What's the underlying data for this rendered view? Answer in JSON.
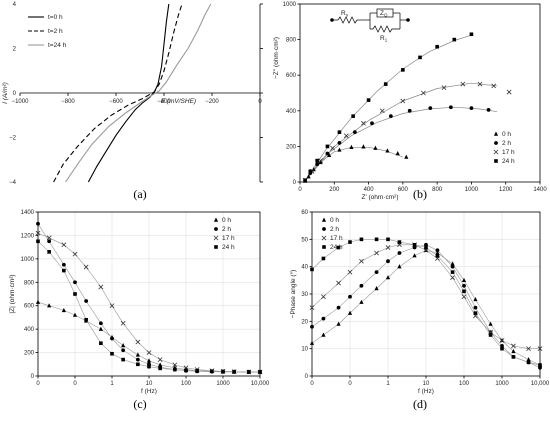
{
  "chart_data": [
    {
      "id": "a",
      "type": "line",
      "caption": "(a)",
      "xlabel": "E (mV/SHE)",
      "ylabel": "I (A/m²)",
      "xlim": [
        -1000,
        0
      ],
      "ylim": [
        -4,
        4
      ],
      "xticks": [
        -1000,
        -800,
        -600,
        -400,
        -200,
        0
      ],
      "yticks": [
        -4,
        -2,
        0,
        2,
        4
      ],
      "xtick_labels": [
        "−1000",
        "−800",
        "−600",
        "−400",
        "−200",
        "0"
      ],
      "ytick_labels": [
        "−4",
        "−2",
        "0",
        "2",
        "4"
      ],
      "legend_position": "top-left",
      "series": [
        {
          "name": "t=0 h",
          "style": "solid",
          "color": "#000000",
          "x": [
            -715,
            -680,
            -640,
            -600,
            -560,
            -520,
            -490,
            -460,
            -440,
            -425,
            -410,
            -400,
            -390,
            -380
          ],
          "y": [
            -4,
            -3.3,
            -2.6,
            -1.9,
            -1.3,
            -0.75,
            -0.45,
            -0.2,
            0.05,
            0.4,
            1.2,
            2.2,
            3.2,
            4
          ]
        },
        {
          "name": "t=2 h",
          "style": "dashed",
          "color": "#000000",
          "x": [
            -860,
            -820,
            -760,
            -690,
            -620,
            -550,
            -490,
            -440,
            -420,
            -400,
            -380,
            -360,
            -340,
            -325
          ],
          "y": [
            -4,
            -3.2,
            -2.4,
            -1.6,
            -1.0,
            -0.55,
            -0.25,
            0.05,
            0.4,
            1.0,
            1.8,
            2.7,
            3.5,
            4
          ]
        },
        {
          "name": "t=24 h",
          "style": "solid",
          "color": "#9a9a9a",
          "x": [
            -810,
            -760,
            -700,
            -630,
            -560,
            -500,
            -450,
            -420,
            -390,
            -350,
            -300,
            -260,
            -230,
            -205
          ],
          "y": [
            -4,
            -3.2,
            -2.3,
            -1.5,
            -0.9,
            -0.45,
            -0.1,
            0.1,
            0.5,
            1.2,
            2.0,
            2.8,
            3.5,
            4
          ]
        }
      ]
    },
    {
      "id": "b",
      "type": "scatter",
      "caption": "(b)",
      "xlabel": "Z' (ohm·cm²)",
      "ylabel": "−Z'' (ohm·cm²)",
      "xlim": [
        0,
        1400
      ],
      "ylim": [
        0,
        1000
      ],
      "xticks": [
        0,
        200,
        400,
        600,
        800,
        1000,
        1200,
        1400
      ],
      "yticks": [
        0,
        200,
        400,
        600,
        800,
        1000
      ],
      "xtick_labels": [
        "0",
        "200",
        "400",
        "600",
        "800",
        "1000",
        "1200",
        "1400"
      ],
      "ytick_labels": [
        "0",
        "200",
        "400",
        "600",
        "800",
        "1000"
      ],
      "legend_position": "bottom-right",
      "circuit_labels": {
        "rs": "R",
        "rs_sub": "s",
        "zq": "Z",
        "zq_sub": "Q",
        "r1": "R",
        "r1_sub": "1"
      },
      "series": [
        {
          "name": "0 h",
          "marker": "triangle",
          "color": "#000000",
          "x": [
            30,
            50,
            80,
            120,
            170,
            230,
            300,
            370,
            440,
            510,
            570,
            620
          ],
          "y": [
            5,
            30,
            70,
            110,
            150,
            180,
            195,
            198,
            190,
            175,
            160,
            140
          ]
        },
        {
          "name": "2 h",
          "marker": "circle",
          "color": "#000000",
          "x": [
            30,
            60,
            100,
            160,
            230,
            320,
            420,
            530,
            640,
            760,
            880,
            1000,
            1100
          ],
          "y": [
            10,
            50,
            100,
            160,
            220,
            280,
            330,
            370,
            400,
            415,
            420,
            415,
            405
          ]
        },
        {
          "name": "17 h",
          "marker": "cross",
          "color": "#000000",
          "x": [
            30,
            70,
            120,
            190,
            270,
            370,
            480,
            600,
            720,
            840,
            950,
            1050,
            1130,
            1220
          ],
          "y": [
            10,
            60,
            120,
            190,
            260,
            330,
            400,
            455,
            500,
            530,
            550,
            550,
            540,
            505
          ]
        },
        {
          "name": "24 h",
          "marker": "square",
          "color": "#000000",
          "x": [
            30,
            60,
            100,
            160,
            230,
            310,
            400,
            500,
            600,
            700,
            800,
            900,
            1000
          ],
          "y": [
            10,
            60,
            120,
            200,
            280,
            370,
            460,
            550,
            630,
            700,
            760,
            800,
            830
          ]
        }
      ],
      "fit_curves": [
        {
          "x": [
            25,
            100,
            200,
            300,
            400,
            500,
            600
          ],
          "y": [
            0,
            95,
            170,
            195,
            195,
            175,
            140
          ]
        },
        {
          "x": [
            25,
            150,
            300,
            450,
            600,
            750,
            900,
            1050,
            1150
          ],
          "y": [
            0,
            150,
            260,
            335,
            385,
            410,
            420,
            410,
            395
          ]
        },
        {
          "x": [
            25,
            200,
            400,
            600,
            800,
            1000,
            1150
          ],
          "y": [
            0,
            200,
            345,
            455,
            525,
            555,
            540
          ]
        },
        {
          "x": [
            25,
            150,
            300,
            450,
            600,
            750,
            900,
            1000
          ],
          "y": [
            0,
            180,
            360,
            510,
            635,
            730,
            795,
            825
          ]
        }
      ]
    },
    {
      "id": "c",
      "type": "scatter",
      "caption": "(c)",
      "xlabel": "f (Hz)",
      "ylabel": "|Z| (ohm·cm²)",
      "xscale": "log",
      "xlim": [
        0.01,
        10000
      ],
      "ylim": [
        0,
        1400
      ],
      "xticks": [
        0.01,
        0.1,
        1,
        10,
        100,
        1000,
        10000
      ],
      "yticks": [
        0,
        200,
        400,
        600,
        800,
        1000,
        1200,
        1400
      ],
      "xtick_labels": [
        "0",
        "0",
        "1",
        "10",
        "100",
        "1000",
        "10,000"
      ],
      "ytick_labels": [
        "0",
        "200",
        "400",
        "600",
        "800",
        "1000",
        "1200",
        "1400"
      ],
      "legend_position": "top-right",
      "series": [
        {
          "name": "0 h",
          "marker": "triangle",
          "color": "#000000",
          "x": [
            0.01,
            0.02,
            0.05,
            0.1,
            0.2,
            0.5,
            1,
            2,
            5,
            10,
            20,
            50,
            100,
            200,
            500,
            1000,
            2000,
            5000,
            10000
          ],
          "y": [
            630,
            600,
            560,
            520,
            470,
            400,
            330,
            260,
            180,
            130,
            95,
            70,
            55,
            45,
            40,
            38,
            36,
            35,
            35
          ]
        },
        {
          "name": "2 h",
          "marker": "circle",
          "color": "#000000",
          "x": [
            0.01,
            0.02,
            0.05,
            0.1,
            0.2,
            0.5,
            1,
            2,
            5,
            10,
            20,
            50,
            100,
            200,
            500,
            1000,
            2000,
            5000,
            10000
          ],
          "y": [
            1300,
            1150,
            950,
            800,
            640,
            450,
            320,
            220,
            140,
            100,
            75,
            55,
            45,
            40,
            37,
            35,
            34,
            33,
            33
          ]
        },
        {
          "name": "17 h",
          "marker": "cross",
          "color": "#000000",
          "x": [
            0.01,
            0.02,
            0.05,
            0.1,
            0.2,
            0.5,
            1,
            2,
            5,
            10,
            20,
            50,
            100,
            200,
            500,
            1000,
            2000,
            5000,
            10000
          ],
          "y": [
            1220,
            1180,
            1120,
            1040,
            930,
            760,
            600,
            450,
            290,
            200,
            140,
            95,
            70,
            55,
            45,
            40,
            37,
            35,
            34
          ]
        },
        {
          "name": "24 h",
          "marker": "square",
          "color": "#000000",
          "x": [
            0.01,
            0.02,
            0.05,
            0.1,
            0.2,
            0.5,
            1,
            2,
            5,
            10,
            20,
            50,
            100,
            200,
            500,
            1000,
            2000,
            5000,
            10000
          ],
          "y": [
            1150,
            1060,
            900,
            700,
            480,
            280,
            190,
            140,
            100,
            80,
            65,
            55,
            48,
            44,
            40,
            38,
            36,
            35,
            35
          ]
        }
      ]
    },
    {
      "id": "d",
      "type": "scatter",
      "caption": "(d)",
      "xlabel": "f (Hz)",
      "ylabel": "−Phase angle (°)",
      "xscale": "log",
      "xlim": [
        0.01,
        10000
      ],
      "ylim": [
        0,
        60
      ],
      "xticks": [
        0.01,
        0.1,
        1,
        10,
        100,
        1000,
        10000
      ],
      "yticks": [
        0,
        10,
        20,
        30,
        40,
        50,
        60
      ],
      "xtick_labels": [
        "0",
        "0",
        "1",
        "10",
        "100",
        "1000",
        "10,000"
      ],
      "ytick_labels": [
        "0",
        "10",
        "20",
        "30",
        "40",
        "50",
        "60"
      ],
      "legend_position": "top-left",
      "series": [
        {
          "name": "0 h",
          "marker": "triangle",
          "color": "#000000",
          "x": [
            0.01,
            0.02,
            0.05,
            0.1,
            0.2,
            0.5,
            1,
            2,
            5,
            10,
            20,
            50,
            100,
            200,
            500,
            1000,
            2000,
            5000,
            10000
          ],
          "y": [
            12,
            15,
            19,
            23,
            27,
            32,
            36,
            40,
            44,
            46,
            45,
            41,
            35,
            28,
            19,
            13,
            9,
            6,
            4
          ]
        },
        {
          "name": "2 h",
          "marker": "circle",
          "color": "#000000",
          "x": [
            0.01,
            0.02,
            0.05,
            0.1,
            0.2,
            0.5,
            1,
            2,
            5,
            10,
            20,
            50,
            100,
            200,
            500,
            1000,
            2000,
            5000,
            10000
          ],
          "y": [
            18,
            21,
            25,
            29,
            33,
            38,
            42,
            45,
            47,
            48,
            46,
            40,
            33,
            25,
            16,
            11,
            7,
            5,
            3
          ]
        },
        {
          "name": "17 h",
          "marker": "cross",
          "color": "#000000",
          "x": [
            0.01,
            0.02,
            0.05,
            0.1,
            0.2,
            0.5,
            1,
            2,
            5,
            10,
            20,
            50,
            100,
            200,
            500,
            1000,
            2000,
            5000,
            10000
          ],
          "y": [
            25,
            29,
            34,
            38,
            42,
            45,
            47,
            48,
            48,
            46,
            43,
            36,
            29,
            22,
            16,
            13,
            11,
            10,
            10
          ]
        },
        {
          "name": "24 h",
          "marker": "square",
          "color": "#000000",
          "x": [
            0.01,
            0.02,
            0.05,
            0.1,
            0.2,
            0.5,
            1,
            2,
            5,
            10,
            20,
            50,
            100,
            200,
            500,
            1000,
            2000,
            5000,
            10000
          ],
          "y": [
            39,
            43,
            47,
            49,
            50,
            50,
            50,
            49,
            48,
            47,
            44,
            38,
            31,
            23,
            15,
            10,
            7,
            5,
            4
          ]
        }
      ]
    }
  ]
}
